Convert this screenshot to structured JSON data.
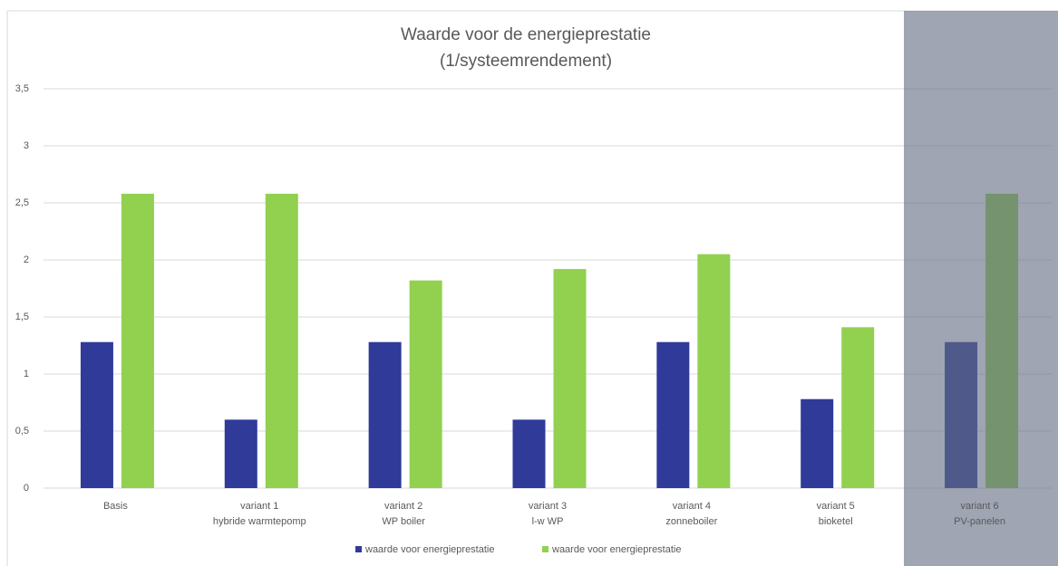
{
  "chart_data": {
    "type": "bar",
    "title": "Waarde voor de energieprestatie",
    "subtitle": "(1/systeemrendement)",
    "categories": [
      [
        "Basis"
      ],
      [
        "variant 1",
        "hybride warmtepomp"
      ],
      [
        "variant 2",
        "WP boiler"
      ],
      [
        "variant 3",
        "l-w WP"
      ],
      [
        "variant 4",
        "zonneboiler"
      ],
      [
        "variant 5",
        "bioketel"
      ],
      [
        "variant 6",
        "PV-panelen"
      ]
    ],
    "series": [
      {
        "name": "waarde voor energieprestatie",
        "color": "#2f3a99",
        "values": [
          1.28,
          0.6,
          1.28,
          0.6,
          1.28,
          0.78,
          1.28
        ]
      },
      {
        "name": "waarde voor energieprestatie",
        "color": "#92d050",
        "values": [
          2.58,
          2.58,
          1.82,
          1.92,
          2.05,
          1.41,
          2.58
        ]
      }
    ],
    "ylim": [
      0,
      3.5
    ],
    "yticks": [
      0,
      {
        "value": 0.5,
        "label": "0,5"
      },
      1,
      {
        "value": 1.5,
        "label": "1,5"
      },
      2,
      {
        "value": 2.5,
        "label": "2,5"
      },
      3,
      {
        "value": 3.5,
        "label": "3,5"
      }
    ],
    "grid": true,
    "legend": "bottom"
  }
}
